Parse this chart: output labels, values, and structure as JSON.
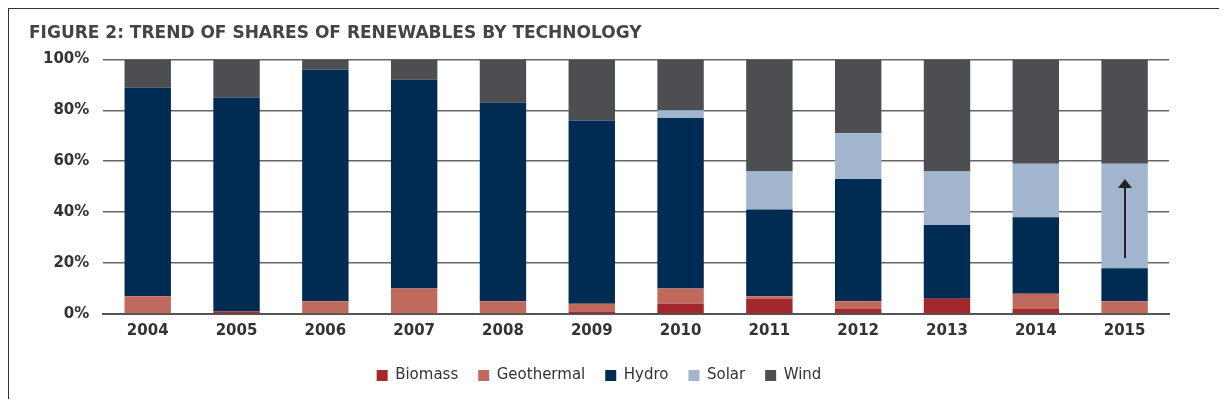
{
  "chart_data": {
    "type": "bar",
    "title": "FIGURE 2: TREND OF SHARES OF RENEWABLES BY TECHNOLOGY",
    "stacked": true,
    "grid": "y",
    "legend": "bottom",
    "categories": [
      "2004",
      "2005",
      "2006",
      "2007",
      "2008",
      "2009",
      "2010",
      "2011",
      "2012",
      "2013",
      "2014",
      "2015"
    ],
    "ylim": [
      0,
      100
    ],
    "yticks": [
      {
        "value": 0,
        "label": "0%"
      },
      {
        "value": 20,
        "label": "20%"
      },
      {
        "value": 40,
        "label": "40%"
      },
      {
        "value": 60,
        "label": "60%"
      },
      {
        "value": 80,
        "label": "80%"
      },
      {
        "value": 100,
        "label": "100%"
      }
    ],
    "series": [
      {
        "name": "Biomass",
        "color": "#a3282b",
        "values": [
          0,
          1,
          0,
          0,
          0,
          1,
          4,
          6,
          2,
          6,
          2,
          0
        ]
      },
      {
        "name": "Geothermal",
        "color": "#c06a5e",
        "values": [
          7,
          0,
          5,
          10,
          5,
          3,
          6,
          1,
          3,
          0,
          6,
          5
        ]
      },
      {
        "name": "Hydro",
        "color": "#002b52",
        "values": [
          82,
          84,
          91,
          82,
          78,
          72,
          67,
          34,
          48,
          29,
          30,
          13
        ]
      },
      {
        "name": "Solar",
        "color": "#a2b5cf",
        "values": [
          0,
          0,
          0,
          0,
          0,
          0,
          3,
          15,
          18,
          21,
          21,
          41
        ]
      },
      {
        "name": "Wind",
        "color": "#4d4e52",
        "values": [
          11,
          15,
          4,
          8,
          17,
          24,
          20,
          44,
          29,
          44,
          41,
          41
        ]
      }
    ]
  }
}
